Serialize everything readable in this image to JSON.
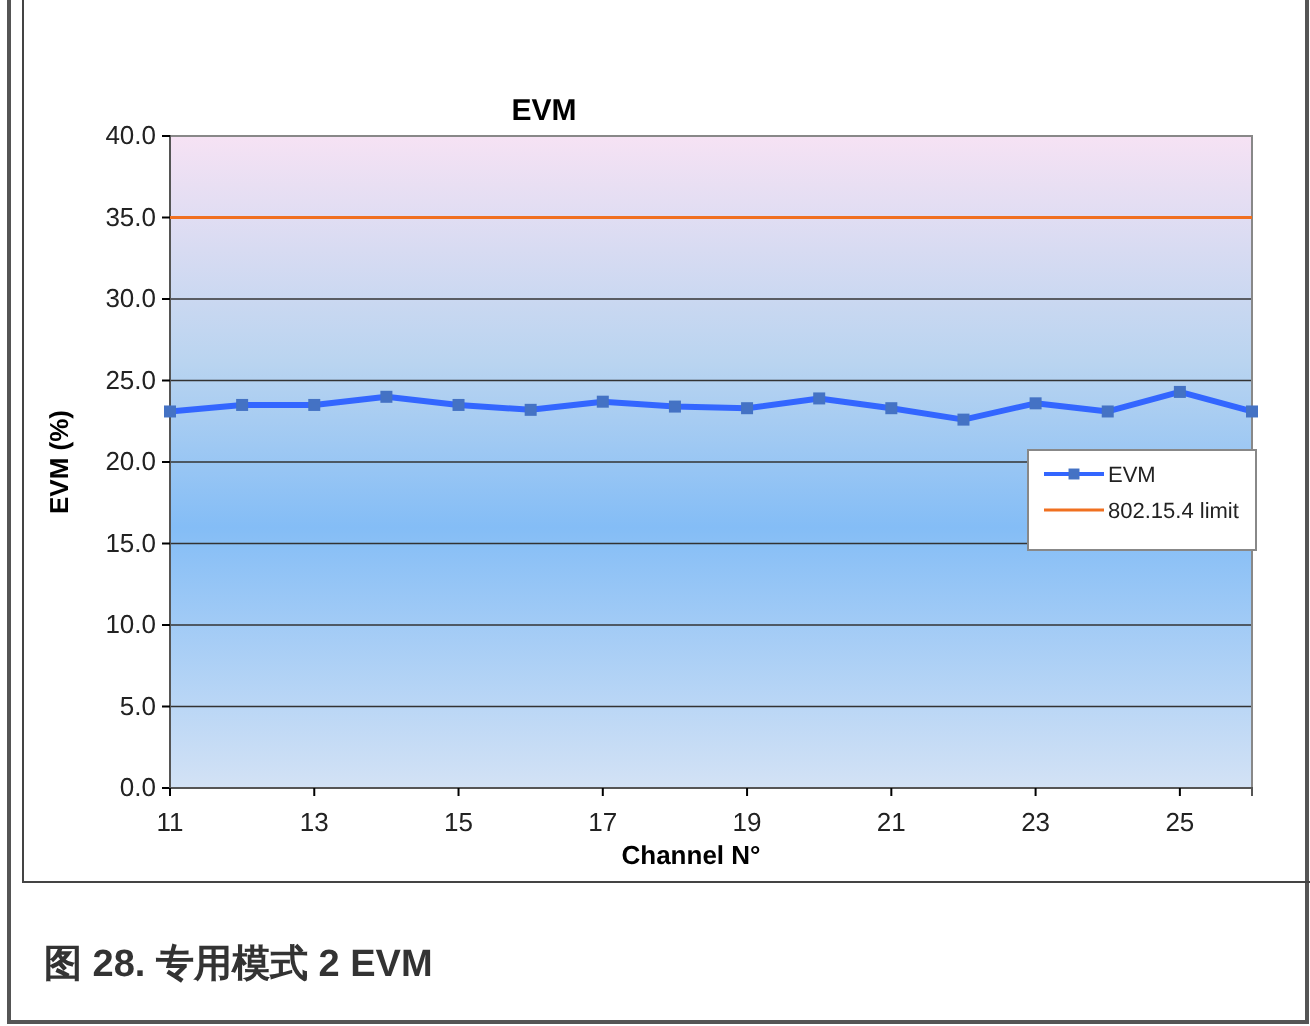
{
  "chart_data": {
    "type": "line",
    "title": "EVM",
    "xlabel": "Channel N°",
    "ylabel": "EVM (%)",
    "x": [
      11,
      12,
      13,
      14,
      15,
      16,
      17,
      18,
      19,
      20,
      21,
      22,
      23,
      24,
      25,
      26
    ],
    "series": [
      {
        "name": "EVM",
        "color": "#3366ff",
        "values": [
          23.1,
          23.5,
          23.5,
          24.0,
          23.5,
          23.2,
          23.7,
          23.4,
          23.3,
          23.9,
          23.3,
          22.6,
          23.6,
          23.1,
          24.3,
          23.1
        ]
      }
    ],
    "ref_lines": [
      {
        "axis": "y",
        "value": 35,
        "label": "802.15.4  limit",
        "color": "#f07020"
      }
    ],
    "xlim": [
      11,
      26
    ],
    "xticks": [
      11,
      13,
      15,
      17,
      19,
      21,
      23,
      25
    ],
    "ylim": [
      0,
      40
    ],
    "yticks": [
      {
        "value": 0,
        "label": "0.0"
      },
      {
        "value": 5,
        "label": "5.0"
      },
      {
        "value": 10,
        "label": "10.0"
      },
      {
        "value": 15,
        "label": "15.0"
      },
      {
        "value": 20,
        "label": "20.0"
      },
      {
        "value": 25,
        "label": "25.0"
      },
      {
        "value": 30,
        "label": "30.0"
      },
      {
        "value": 35,
        "label": "35.0"
      },
      {
        "value": 40,
        "label": "40.0"
      }
    ],
    "grid": "y",
    "legend": "right",
    "marker": "square",
    "line_style": "solid",
    "annotations": [
      "图 28. 专用模式 2 EVM"
    ]
  }
}
